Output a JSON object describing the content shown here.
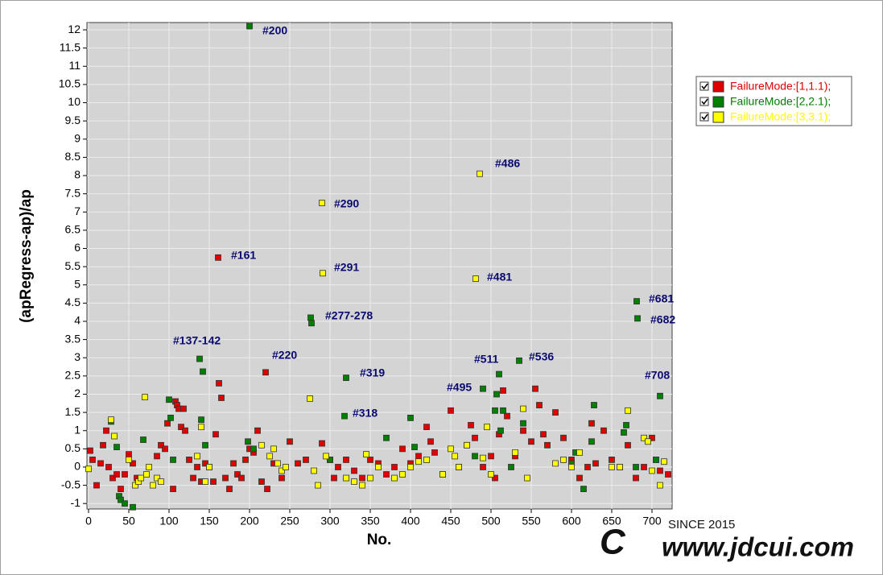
{
  "chart_data": {
    "type": "scatter",
    "x_label": "No.",
    "y_label": "(apRegress-ap)/ap",
    "xlim": [
      -2,
      725
    ],
    "ylim": [
      -1.15,
      12.2
    ],
    "xticks": [
      0,
      50,
      100,
      150,
      200,
      250,
      300,
      350,
      400,
      450,
      500,
      550,
      600,
      650,
      700
    ],
    "yticks": [
      -1,
      -0.5,
      0,
      0.5,
      1,
      1.5,
      2,
      2.5,
      3,
      3.5,
      4,
      4.5,
      5,
      5.5,
      6,
      6.5,
      7,
      7.5,
      8,
      8.5,
      9,
      9.5,
      10,
      10.5,
      11,
      11.5,
      12
    ],
    "grid": true,
    "legend_position": "right",
    "annotations": [
      "#200",
      "#290",
      "#486",
      "#161",
      "#291",
      "#481",
      "#681",
      "#682",
      "#277-278",
      "#137-142",
      "#220",
      "#511",
      "#536",
      "#319",
      "#708",
      "#495",
      "#318"
    ],
    "series": [
      {
        "name": "FailureMode:[1,1.1);",
        "color": "#e00000",
        "x": [
          2,
          5,
          10,
          15,
          18,
          22,
          25,
          30,
          35,
          40,
          45,
          50,
          55,
          60,
          85,
          90,
          95,
          98,
          105,
          108,
          110,
          112,
          115,
          118,
          120,
          125,
          130,
          135,
          140,
          145,
          150,
          155,
          158,
          161,
          162,
          165,
          170,
          175,
          180,
          185,
          190,
          195,
          200,
          205,
          210,
          215,
          220,
          222,
          230,
          240,
          250,
          260,
          270,
          290,
          300,
          305,
          310,
          320,
          330,
          340,
          350,
          360,
          370,
          380,
          390,
          400,
          410,
          420,
          425,
          430,
          440,
          450,
          460,
          470,
          475,
          480,
          490,
          500,
          505,
          510,
          515,
          520,
          530,
          540,
          550,
          555,
          560,
          565,
          570,
          580,
          590,
          600,
          610,
          620,
          625,
          630,
          640,
          650,
          660,
          670,
          680,
          690,
          700,
          705,
          710,
          720
        ],
        "values": [
          0.45,
          0.2,
          -0.5,
          0.1,
          0.6,
          1,
          0.0,
          -0.3,
          -0.2,
          -0.6,
          -0.2,
          0.35,
          0.1,
          -0.3,
          0.3,
          0.6,
          0.5,
          1.2,
          -0.6,
          1.8,
          1.7,
          1.6,
          1.1,
          1.6,
          1.0,
          0.2,
          -0.3,
          0.0,
          -0.4,
          0.1,
          0.0,
          -0.4,
          0.9,
          5.75,
          2.3,
          1.9,
          -0.3,
          -0.6,
          0.1,
          -0.2,
          -0.3,
          0.2,
          0.5,
          0.4,
          1.0,
          -0.4,
          2.6,
          -0.6,
          0.1,
          -0.3,
          0.7,
          0.1,
          0.2,
          0.65,
          0.2,
          -0.3,
          0.0,
          0.2,
          -0.1,
          -0.3,
          0.2,
          0.1,
          -0.2,
          0.0,
          0.5,
          0.1,
          0.3,
          1.1,
          0.7,
          0.4,
          -0.2,
          1.55,
          0.0,
          0.6,
          1.15,
          0.8,
          0.0,
          0.3,
          -0.3,
          0.9,
          2.1,
          1.4,
          0.3,
          1.0,
          0.7,
          2.15,
          1.7,
          0.9,
          0.6,
          1.5,
          0.8,
          0.2,
          -0.3,
          0.0,
          1.2,
          0.1,
          1.0,
          0.2,
          0.0,
          0.6,
          -0.3,
          0.0,
          0.8,
          0.2,
          -0.1,
          -0.2
        ]
      },
      {
        "name": "FailureMode:[2,2.1);",
        "color": "#008000",
        "x": [
          28,
          35,
          38,
          40,
          45,
          55,
          68,
          100,
          102,
          105,
          138,
          140,
          142,
          145,
          198,
          200,
          205,
          276,
          277,
          300,
          318,
          320,
          370,
          400,
          405,
          480,
          490,
          505,
          507,
          510,
          512,
          515,
          525,
          535,
          540,
          600,
          605,
          615,
          625,
          628,
          665,
          668,
          680,
          681,
          682,
          705,
          710
        ],
        "values": [
          1.25,
          0.55,
          -0.8,
          -0.9,
          -1.0,
          -1.1,
          0.75,
          1.85,
          1.35,
          0.2,
          2.97,
          1.3,
          2.62,
          0.6,
          0.7,
          12.1,
          0.5,
          4.1,
          3.95,
          0.2,
          1.4,
          2.45,
          0.8,
          1.35,
          0.55,
          0.3,
          2.15,
          1.55,
          2.0,
          2.55,
          1.0,
          1.55,
          0.0,
          2.92,
          1.2,
          0.1,
          0.4,
          -0.6,
          0.7,
          1.7,
          0.95,
          1.15,
          0.0,
          4.55,
          4.08,
          0.2,
          1.95
        ]
      },
      {
        "name": "FailureMode:[3,3.1);",
        "color": "#ffff00",
        "x": [
          0,
          28,
          32,
          50,
          58,
          62,
          65,
          70,
          72,
          75,
          80,
          85,
          90,
          135,
          140,
          145,
          150,
          215,
          225,
          230,
          235,
          240,
          245,
          275,
          280,
          285,
          290,
          291,
          295,
          320,
          330,
          340,
          345,
          350,
          360,
          380,
          390,
          400,
          410,
          420,
          440,
          450,
          455,
          460,
          470,
          481,
          486,
          490,
          495,
          500,
          530,
          540,
          545,
          580,
          590,
          600,
          610,
          650,
          660,
          670,
          690,
          695,
          700,
          710,
          715
        ],
        "values": [
          -0.05,
          1.3,
          0.85,
          0.2,
          -0.5,
          -0.4,
          -0.3,
          1.92,
          -0.2,
          0.0,
          -0.5,
          -0.3,
          -0.4,
          0.3,
          1.1,
          -0.4,
          0.0,
          0.6,
          0.3,
          0.5,
          0.1,
          -0.1,
          0.0,
          1.88,
          -0.1,
          -0.5,
          7.25,
          5.32,
          0.3,
          -0.3,
          -0.4,
          -0.5,
          0.35,
          -0.3,
          0.0,
          -0.3,
          -0.2,
          0.0,
          0.15,
          0.2,
          -0.2,
          0.5,
          0.3,
          0.0,
          0.6,
          5.17,
          8.05,
          0.25,
          1.1,
          -0.2,
          0.4,
          1.6,
          -0.3,
          0.1,
          0.2,
          0.0,
          0.4,
          0.0,
          0.0,
          1.55,
          0.8,
          0.7,
          -0.1,
          -0.5,
          0.15
        ]
      }
    ]
  },
  "watermark": {
    "since": "SINCE 2015",
    "url": "www.jdcui.com"
  }
}
